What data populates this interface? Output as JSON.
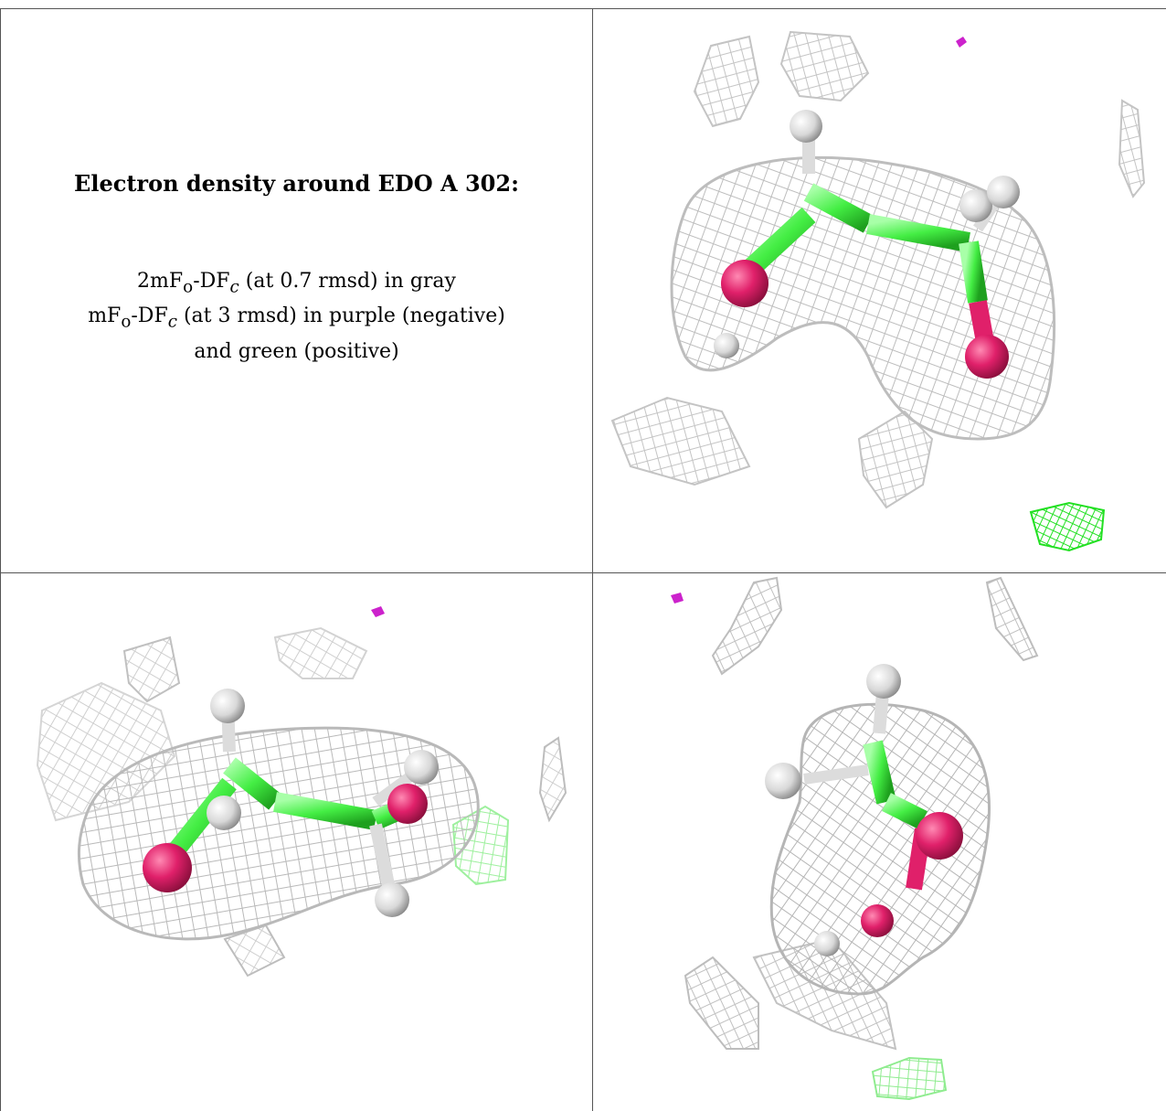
{
  "caption": {
    "title": "Electron density around EDO A 302:",
    "line1": "2mFₒ-DFc (at 0.7 rmsd) in gray",
    "line2": "mFₒ-DFc (at 3 rmsd) in purple (negative)",
    "line3": "and green (positive)"
  },
  "colors": {
    "mesh_2fofc": "#c8c8c8",
    "mesh_fofc_negative": "#cc22cc",
    "mesh_fofc_positive": "#22ee22",
    "carbon": "#4cf04c",
    "oxygen": "#e0206a",
    "hydrogen": "#e8e8e8"
  }
}
